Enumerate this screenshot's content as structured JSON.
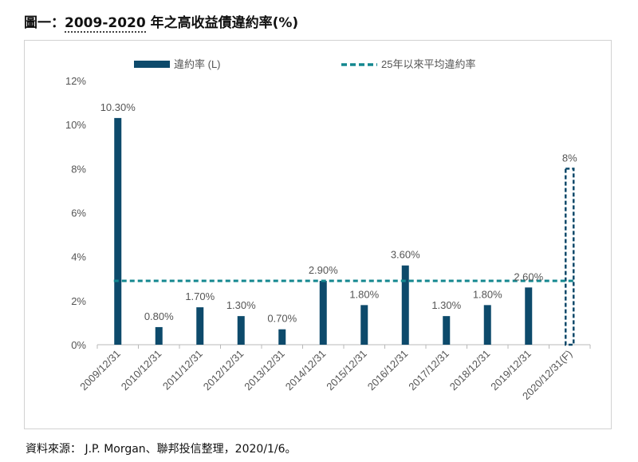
{
  "title": {
    "prefix": "圖一：",
    "range": "2009-2020",
    "suffix": "年之高收益債違約率(%)"
  },
  "source": "資料來源： J.P. Morgan、聯邦投信整理，2020/1/6。",
  "colors": {
    "bar": "#0d4a6b",
    "avg_line": "#13878f",
    "axis": "#b8b8b8",
    "text": "#555555"
  },
  "chart_data": {
    "type": "bar",
    "title": "2009-2020 年之高收益債違約率(%)",
    "categories": [
      "2009/12/31",
      "2010/12/31",
      "2011/12/31",
      "2012/12/31",
      "2013/12/31",
      "2014/12/31",
      "2015/12/31",
      "2016/12/31",
      "2017/12/31",
      "2018/12/31",
      "2019/12/31",
      "2020/12/31(F)"
    ],
    "series": [
      {
        "name": "違約率 (L)",
        "values": [
          10.3,
          0.8,
          1.7,
          1.3,
          0.7,
          2.9,
          1.8,
          3.6,
          1.3,
          1.8,
          2.6,
          8
        ],
        "labels": [
          "10.30%",
          "0.80%",
          "1.70%",
          "1.30%",
          "0.70%",
          "2.90%",
          "1.80%",
          "3.60%",
          "1.30%",
          "1.80%",
          "2.60%",
          "8%"
        ],
        "forecast_index": 11
      }
    ],
    "average": {
      "name": "25年以來平均違約率",
      "value": 2.9
    },
    "ylim": [
      0,
      12
    ],
    "yticks": [
      "0%",
      "2%",
      "4%",
      "6%",
      "8%",
      "10%",
      "12%"
    ],
    "ytick_values": [
      0,
      2,
      4,
      6,
      8,
      10,
      12
    ],
    "xlabel": "",
    "ylabel": "",
    "legend_position": "top"
  }
}
